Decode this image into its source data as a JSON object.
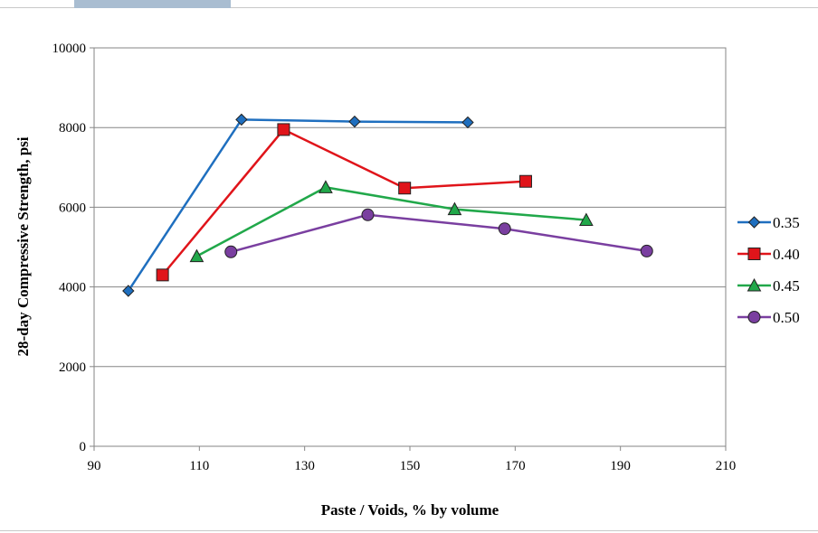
{
  "chart_data": {
    "type": "line",
    "title": "",
    "xlabel": "Paste / Voids, % by volume",
    "ylabel": "28-day Compressive Strength, psi",
    "xlim": [
      90,
      210
    ],
    "ylim": [
      0,
      10000
    ],
    "xticks": [
      90,
      110,
      130,
      150,
      170,
      190,
      210
    ],
    "yticks": [
      0,
      2000,
      4000,
      6000,
      8000,
      10000
    ],
    "grid": "horizontal",
    "legend_position": "right",
    "series": [
      {
        "name": "0.35",
        "color": "#1f6fbf",
        "marker": "diamond",
        "x": [
          96.5,
          118,
          139.5,
          161
        ],
        "y": [
          3900,
          8200,
          8150,
          8130
        ]
      },
      {
        "name": "0.40",
        "color": "#e0141a",
        "marker": "square",
        "x": [
          103,
          126,
          149,
          172
        ],
        "y": [
          4300,
          7950,
          6480,
          6650
        ]
      },
      {
        "name": "0.45",
        "color": "#21a84a",
        "marker": "triangle",
        "x": [
          109.5,
          134,
          158.5,
          183.5
        ],
        "y": [
          4770,
          6500,
          5950,
          5680
        ]
      },
      {
        "name": "0.50",
        "color": "#7a3fa0",
        "marker": "circle",
        "x": [
          116,
          142,
          168,
          195
        ],
        "y": [
          4880,
          5810,
          5460,
          4900
        ]
      }
    ]
  }
}
